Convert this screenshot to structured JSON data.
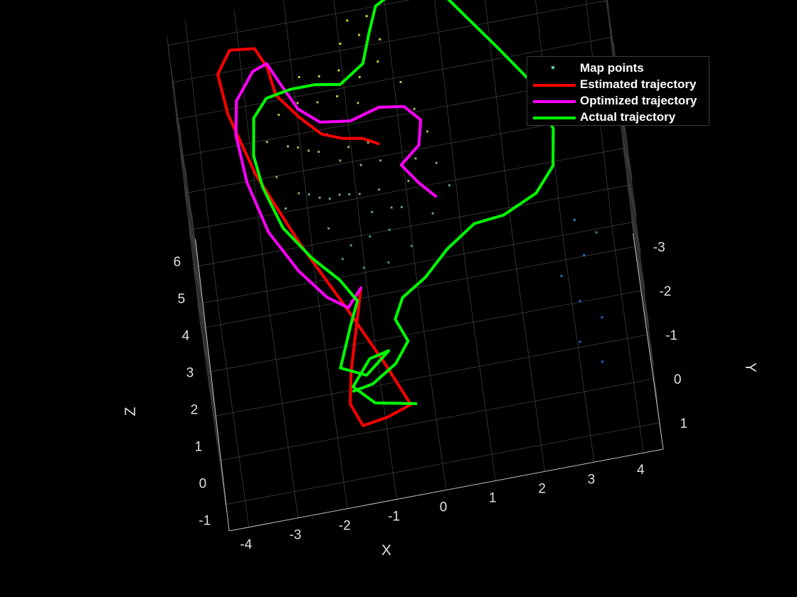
{
  "chart_data": {
    "type": "scatter3d",
    "xlabel": "X",
    "ylabel": "Y",
    "zlabel": "Z",
    "xlim": [
      -4.4,
      4.4
    ],
    "ylim": [
      -3.3,
      1.6
    ],
    "zlim": [
      -1.3,
      6.6
    ],
    "x_ticks": [
      "-4",
      "-3",
      "-2",
      "-1",
      "0",
      "1",
      "2",
      "3",
      "4"
    ],
    "y_ticks": [
      "-3",
      "-2",
      "-1",
      "0",
      "1"
    ],
    "z_ticks": [
      "-1",
      "0",
      "1",
      "2",
      "3",
      "4",
      "5",
      "6"
    ],
    "grid": true,
    "legend_position": "top-right",
    "series": [
      {
        "name": "Map points",
        "kind": "points",
        "color": "#4fd494",
        "points": [
          [
            -2.3,
            -0.9,
            5.6
          ],
          [
            -2.1,
            -1.0,
            5.4
          ],
          [
            -1.9,
            -0.8,
            5.5
          ],
          [
            -1.7,
            -0.9,
            5.3
          ],
          [
            -1.5,
            -1.0,
            5.6
          ],
          [
            -1.3,
            -0.7,
            5.2
          ],
          [
            -1.1,
            -0.8,
            5.4
          ],
          [
            -0.9,
            -0.6,
            5.1
          ],
          [
            -0.7,
            -0.9,
            5.3
          ],
          [
            -0.5,
            -0.7,
            5.0
          ],
          [
            -2.2,
            -0.4,
            4.9
          ],
          [
            -2.0,
            -0.5,
            4.7
          ],
          [
            -1.8,
            -0.3,
            4.8
          ],
          [
            -1.6,
            -0.4,
            4.6
          ],
          [
            -1.4,
            -0.2,
            4.9
          ],
          [
            -1.2,
            -0.5,
            4.5
          ],
          [
            -1.0,
            -0.3,
            4.7
          ],
          [
            -0.8,
            -0.1,
            4.4
          ],
          [
            -0.6,
            -0.4,
            4.6
          ],
          [
            -0.4,
            -0.2,
            4.3
          ],
          [
            -2.4,
            -1.3,
            6.0
          ],
          [
            -2.0,
            -1.4,
            6.1
          ],
          [
            -1.6,
            -1.5,
            5.9
          ],
          [
            -1.2,
            -1.3,
            6.2
          ],
          [
            -0.8,
            -1.4,
            5.8
          ],
          [
            -1.9,
            -1.8,
            6.3
          ],
          [
            -1.5,
            -1.9,
            6.1
          ],
          [
            -1.1,
            -1.7,
            6.4
          ],
          [
            -0.7,
            -1.8,
            6.0
          ],
          [
            -0.3,
            -1.9,
            6.2
          ],
          [
            0.1,
            -1.6,
            5.9
          ],
          [
            0.3,
            -1.2,
            5.6
          ],
          [
            0.5,
            -0.9,
            5.3
          ],
          [
            0.2,
            -0.6,
            5.0
          ],
          [
            0.0,
            -0.3,
            4.8
          ],
          [
            -0.2,
            0.0,
            4.5
          ],
          [
            -0.5,
            0.2,
            4.2
          ],
          [
            -0.9,
            0.1,
            4.0
          ],
          [
            -1.3,
            0.3,
            4.1
          ],
          [
            -1.7,
            0.0,
            4.3
          ],
          [
            -2.6,
            -0.6,
            5.2
          ],
          [
            -2.5,
            -0.2,
            4.8
          ],
          [
            -2.7,
            -1.0,
            5.7
          ],
          [
            0.6,
            -0.5,
            4.9
          ],
          [
            0.8,
            -0.2,
            4.6
          ],
          [
            0.4,
            0.1,
            4.3
          ],
          [
            -0.1,
            0.4,
            3.9
          ],
          [
            -0.6,
            0.5,
            3.7
          ],
          [
            -1.1,
            0.6,
            3.8
          ],
          [
            -1.5,
            0.4,
            3.9
          ],
          [
            -1.0,
            -2.2,
            6.5
          ],
          [
            -0.6,
            -2.4,
            6.4
          ],
          [
            -0.2,
            -2.3,
            6.3
          ],
          [
            -0.8,
            -2.6,
            6.6
          ],
          [
            -0.4,
            -2.7,
            6.5
          ],
          [
            2.8,
            0.6,
            2.6
          ],
          [
            3.1,
            0.9,
            2.2
          ],
          [
            3.3,
            0.4,
            2.8
          ],
          [
            3.5,
            1.1,
            1.9
          ],
          [
            3.0,
            1.3,
            1.6
          ],
          [
            3.6,
            0.2,
            3.1
          ],
          [
            3.4,
            1.5,
            1.2
          ],
          [
            3.2,
            0.0,
            3.3
          ]
        ]
      },
      {
        "name": "Estimated trajectory",
        "kind": "line",
        "color": "#ff0000",
        "points": [
          [
            -1.2,
            0.2,
            2.8
          ],
          [
            -1.4,
            0.6,
            2.2
          ],
          [
            -1.6,
            1.0,
            1.6
          ],
          [
            -1.7,
            1.3,
            1.1
          ],
          [
            -1.5,
            1.5,
            0.7
          ],
          [
            -1.0,
            1.5,
            0.8
          ],
          [
            -0.5,
            1.4,
            0.9
          ],
          [
            -0.9,
            1.0,
            1.6
          ],
          [
            -1.5,
            0.5,
            2.6
          ],
          [
            -2.3,
            -0.2,
            3.8
          ],
          [
            -3.0,
            -0.9,
            5.0
          ],
          [
            -3.4,
            -1.6,
            5.9
          ],
          [
            -3.5,
            -2.2,
            6.3
          ],
          [
            -3.2,
            -2.6,
            6.4
          ],
          [
            -2.7,
            -2.7,
            6.2
          ],
          [
            -2.5,
            -2.4,
            6.0
          ],
          [
            -2.4,
            -2.0,
            5.7
          ],
          [
            -2.0,
            -1.5,
            5.6
          ],
          [
            -1.6,
            -1.2,
            5.4
          ],
          [
            -1.2,
            -1.1,
            5.3
          ],
          [
            -0.8,
            -1.1,
            5.2
          ],
          [
            -0.5,
            -1.0,
            5.1
          ]
        ]
      },
      {
        "name": "Optimized trajectory",
        "kind": "line",
        "color": "#ff00ff",
        "points": [
          [
            -1.2,
            0.2,
            2.8
          ],
          [
            -1.5,
            0.5,
            2.7
          ],
          [
            -1.9,
            0.6,
            3.2
          ],
          [
            -2.4,
            0.4,
            3.8
          ],
          [
            -2.9,
            0.0,
            4.5
          ],
          [
            -3.2,
            -0.6,
            5.2
          ],
          [
            -3.3,
            -1.2,
            5.8
          ],
          [
            -3.2,
            -1.7,
            6.1
          ],
          [
            -2.8,
            -2.2,
            6.2
          ],
          [
            -2.5,
            -2.4,
            6.1
          ],
          [
            -2.3,
            -2.1,
            5.9
          ],
          [
            -2.0,
            -1.6,
            5.7
          ],
          [
            -1.6,
            -1.3,
            5.6
          ],
          [
            -1.0,
            -1.2,
            5.6
          ],
          [
            -0.4,
            -1.3,
            5.7
          ],
          [
            0.1,
            -1.3,
            5.6
          ],
          [
            0.4,
            -1.1,
            5.4
          ],
          [
            0.3,
            -0.8,
            5.1
          ],
          [
            -0.1,
            -0.6,
            4.9
          ],
          [
            0.2,
            -0.3,
            4.7
          ],
          [
            0.5,
            -0.1,
            4.5
          ]
        ]
      },
      {
        "name": "Actual trajectory",
        "kind": "line",
        "color": "#00ff00",
        "points": [
          [
            -0.4,
            1.4,
            0.9
          ],
          [
            -1.2,
            1.3,
            1.0
          ],
          [
            -1.6,
            1.1,
            1.3
          ],
          [
            -1.2,
            0.8,
            1.6
          ],
          [
            -0.8,
            0.7,
            1.6
          ],
          [
            -1.3,
            0.9,
            1.3
          ],
          [
            -1.8,
            0.8,
            1.5
          ],
          [
            -1.5,
            0.5,
            2.2
          ],
          [
            -1.3,
            0.3,
            2.6
          ],
          [
            -1.6,
            0.1,
            3.0
          ],
          [
            -2.1,
            0.0,
            3.6
          ],
          [
            -2.6,
            -0.2,
            4.3
          ],
          [
            -2.9,
            -0.6,
            5.0
          ],
          [
            -3.0,
            -1.0,
            5.4
          ],
          [
            -2.9,
            -1.5,
            5.8
          ],
          [
            -2.6,
            -1.8,
            5.9
          ],
          [
            -2.1,
            -1.9,
            5.9
          ],
          [
            -1.6,
            -1.9,
            5.9
          ],
          [
            -1.1,
            -1.8,
            5.9
          ],
          [
            -0.6,
            -2.0,
            6.1
          ],
          [
            -0.4,
            -2.4,
            6.4
          ],
          [
            -0.2,
            -2.8,
            6.6
          ],
          [
            0.4,
            -3.0,
            6.8
          ],
          [
            1.1,
            -2.8,
            6.7
          ],
          [
            1.6,
            -2.3,
            6.4
          ],
          [
            2.1,
            -1.8,
            6.1
          ],
          [
            2.7,
            -1.2,
            5.7
          ],
          [
            3.0,
            -0.6,
            5.1
          ],
          [
            2.9,
            -0.2,
            4.6
          ],
          [
            2.5,
            0.0,
            4.2
          ],
          [
            1.8,
            0.1,
            3.9
          ],
          [
            1.2,
            0.0,
            3.7
          ],
          [
            0.6,
            0.2,
            3.4
          ],
          [
            0.1,
            0.4,
            3.0
          ],
          [
            -0.4,
            0.5,
            2.7
          ],
          [
            -0.6,
            0.7,
            2.4
          ],
          [
            -0.4,
            0.9,
            2.0
          ],
          [
            -0.7,
            1.1,
            1.7
          ],
          [
            -1.2,
            1.2,
            1.4
          ],
          [
            -1.6,
            1.2,
            1.3
          ]
        ]
      }
    ]
  },
  "legend": {
    "items": [
      {
        "label": "Map points",
        "color": "#4fd494",
        "marker": "point"
      },
      {
        "label": "Estimated trajectory",
        "color": "#ff0000",
        "marker": "line"
      },
      {
        "label": "Optimized trajectory",
        "color": "#ff00ff",
        "marker": "line"
      },
      {
        "label": "Actual trajectory",
        "color": "#00ff00",
        "marker": "line"
      }
    ]
  }
}
